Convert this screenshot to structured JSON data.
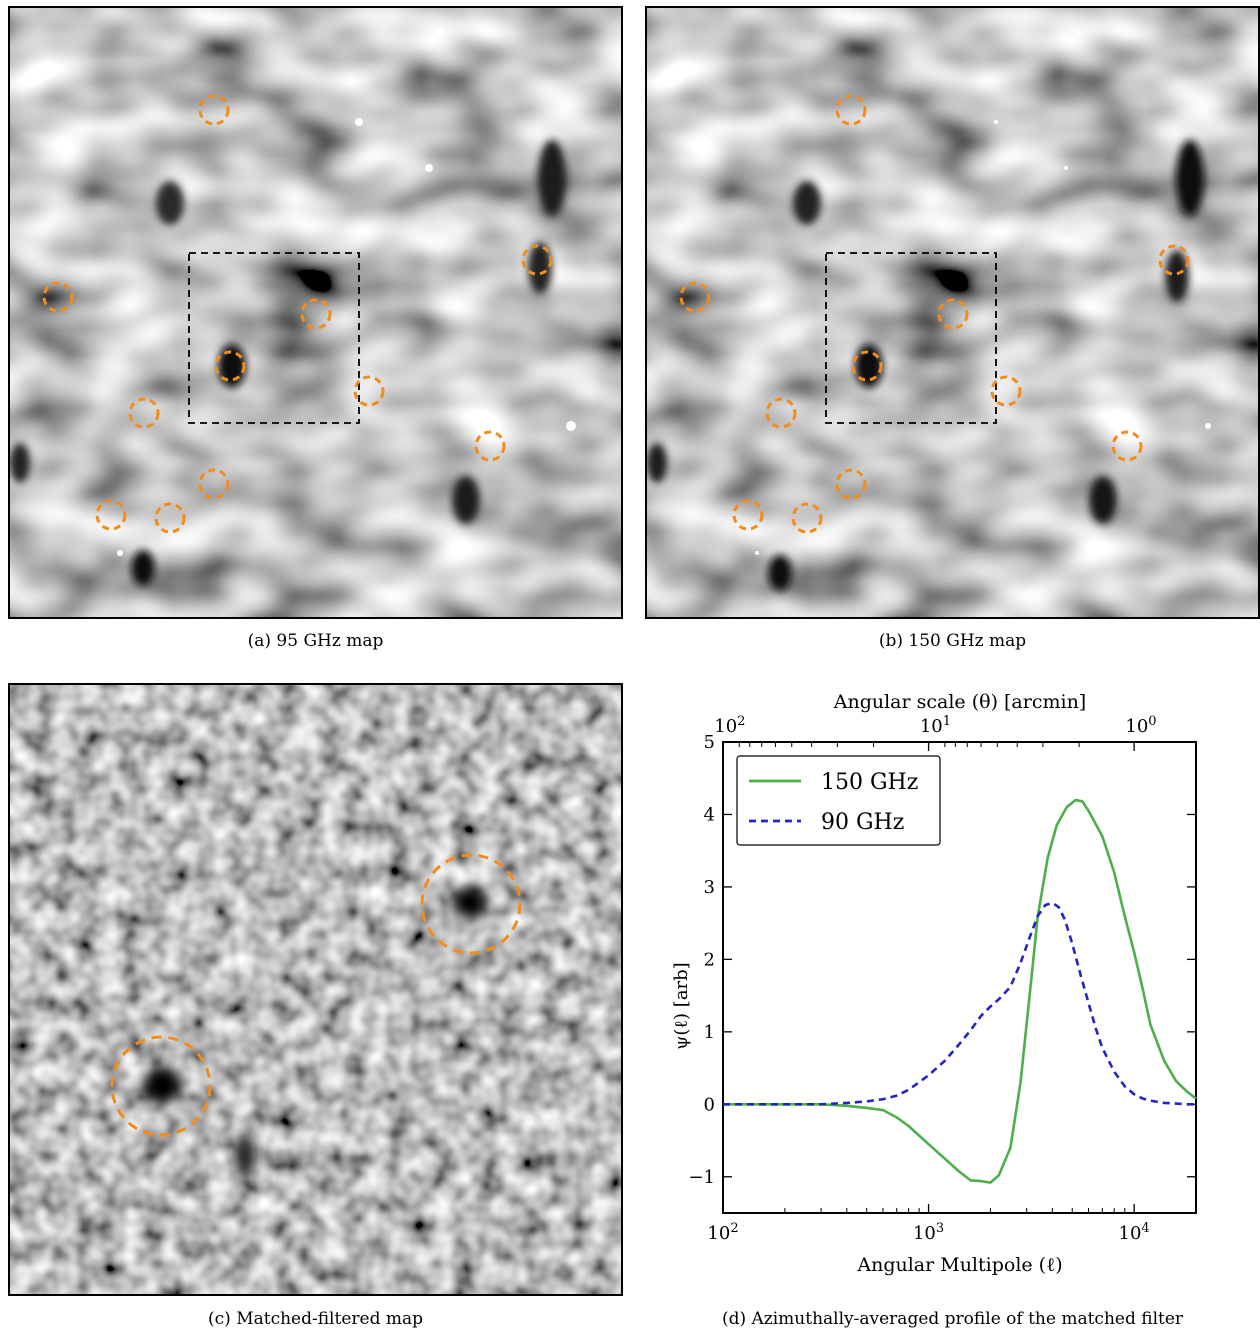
{
  "captions": {
    "a": "(a) 95 GHz map",
    "b": "(b) 150 GHz map",
    "c": "(c) Matched-filtered map",
    "d": "(d) Azimuthally-averaged profile of the matched filter"
  },
  "colors": {
    "marker": "#f28c1c",
    "series_150": "#4daf4a",
    "series_90": "#2323c8"
  },
  "chart_data": {
    "type": "line",
    "xlabel": "Angular Multipole (ℓ)",
    "ylabel": "ψ(ℓ) [arb]",
    "top_axis_label": "Angular scale (θ) [arcmin]",
    "xscale": "log",
    "xlim": [
      100,
      20000
    ],
    "ylim": [
      -1.5,
      5
    ],
    "x_ticks": [
      {
        "base": "10",
        "exp": "2",
        "value": 100
      },
      {
        "base": "10",
        "exp": "3",
        "value": 1000
      },
      {
        "base": "10",
        "exp": "4",
        "value": 10000
      }
    ],
    "top_ticks": [
      {
        "base": "10",
        "exp": "2",
        "value": 100
      },
      {
        "base": "10",
        "exp": "1",
        "value": 10
      },
      {
        "base": "10",
        "exp": "0",
        "value": 1
      }
    ],
    "y_ticks": [
      {
        "label": "−1",
        "value": -1
      },
      {
        "label": "0",
        "value": 0
      },
      {
        "label": "1",
        "value": 1
      },
      {
        "label": "2",
        "value": 2
      },
      {
        "label": "3",
        "value": 3
      },
      {
        "label": "4",
        "value": 4
      },
      {
        "label": "5",
        "value": 5
      }
    ],
    "legend_position": "top-left",
    "grid": false,
    "series": [
      {
        "name": "150 GHz",
        "style": "solid",
        "x": [
          100,
          200,
          300,
          400,
          500,
          600,
          700,
          800,
          1000,
          1200,
          1400,
          1600,
          1800,
          2000,
          2200,
          2500,
          2800,
          3100,
          3400,
          3800,
          4200,
          4700,
          5200,
          5600,
          6000,
          7000,
          8000,
          9000,
          10000,
          11000,
          12000,
          14000,
          16000,
          18000,
          20000
        ],
        "y": [
          0,
          0,
          0,
          -0.02,
          -0.05,
          -0.08,
          -0.18,
          -0.3,
          -0.55,
          -0.75,
          -0.92,
          -1.05,
          -1.06,
          -1.08,
          -0.98,
          -0.6,
          0.3,
          1.5,
          2.6,
          3.4,
          3.85,
          4.1,
          4.2,
          4.18,
          4.05,
          3.7,
          3.2,
          2.6,
          2.1,
          1.6,
          1.1,
          0.6,
          0.32,
          0.18,
          0.08
        ]
      },
      {
        "name": "90 GHz",
        "style": "dashed",
        "x": [
          100,
          200,
          300,
          400,
          500,
          600,
          700,
          800,
          1000,
          1200,
          1400,
          1600,
          1800,
          2000,
          2200,
          2500,
          2800,
          3100,
          3400,
          3700,
          4000,
          4300,
          4600,
          5000,
          5500,
          6000,
          6500,
          7000,
          8000,
          9000,
          10000,
          11000,
          12000,
          14000,
          16000,
          18000,
          20000
        ],
        "y": [
          0,
          0,
          0,
          0.02,
          0.04,
          0.07,
          0.12,
          0.2,
          0.4,
          0.6,
          0.82,
          1.02,
          1.22,
          1.35,
          1.45,
          1.62,
          1.95,
          2.3,
          2.6,
          2.75,
          2.78,
          2.72,
          2.55,
          2.22,
          1.78,
          1.4,
          1.05,
          0.78,
          0.45,
          0.25,
          0.14,
          0.08,
          0.05,
          0.02,
          0.01,
          0,
          0
        ]
      }
    ]
  }
}
